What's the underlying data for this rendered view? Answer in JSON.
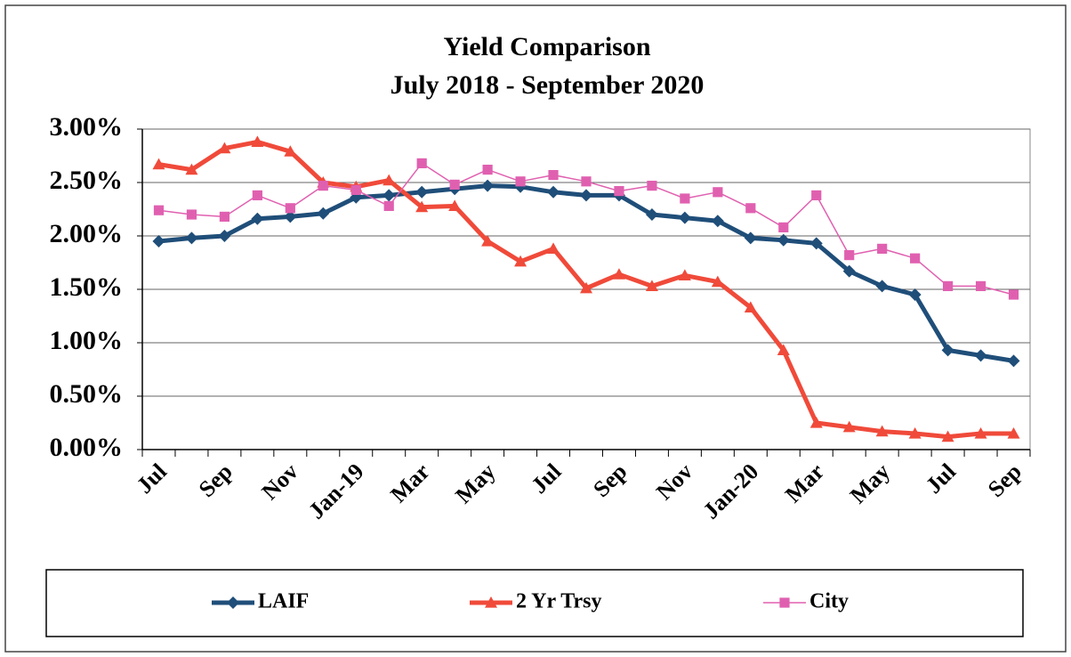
{
  "chart_data": {
    "type": "line",
    "title": "Yield Comparison",
    "subtitle": "July 2018 - September 2020",
    "categories": [
      "Jul",
      null,
      "Sep",
      null,
      "Nov",
      null,
      "Jan-19",
      null,
      "Mar",
      null,
      "May",
      null,
      "Jul",
      null,
      "Sep",
      null,
      "Nov",
      null,
      "Jan-20",
      null,
      "Mar",
      null,
      "May",
      null,
      "Jul",
      null,
      "Sep"
    ],
    "series": [
      {
        "name": "LAIF",
        "color": "#1f4e79",
        "marker": "diamond",
        "values": [
          1.95,
          1.98,
          2.0,
          2.16,
          2.18,
          2.21,
          2.36,
          2.38,
          2.41,
          2.44,
          2.47,
          2.46,
          2.41,
          2.38,
          2.38,
          2.2,
          2.17,
          2.14,
          1.98,
          1.96,
          1.93,
          1.67,
          1.53,
          1.45,
          0.93,
          0.88,
          0.83
        ]
      },
      {
        "name": "2 Yr Trsy",
        "color": "#f04a3a",
        "marker": "triangle",
        "values": [
          2.67,
          2.62,
          2.82,
          2.88,
          2.79,
          2.5,
          2.46,
          2.52,
          2.27,
          2.28,
          1.95,
          1.76,
          1.88,
          1.51,
          1.64,
          1.53,
          1.63,
          1.57,
          1.33,
          0.93,
          0.25,
          0.21,
          0.17,
          0.15,
          0.12,
          0.15,
          0.15
        ]
      },
      {
        "name": "City",
        "color": "#e060b0",
        "marker": "square",
        "values": [
          2.24,
          2.2,
          2.18,
          2.38,
          2.26,
          2.47,
          2.43,
          2.28,
          2.68,
          2.48,
          2.62,
          2.51,
          2.57,
          2.51,
          2.42,
          2.47,
          2.35,
          2.41,
          2.26,
          2.08,
          2.38,
          1.82,
          1.88,
          1.79,
          1.53,
          1.53,
          1.45
        ]
      }
    ],
    "ylim": [
      0,
      3
    ],
    "yticks": [
      {
        "value": 0,
        "label": "0.00%"
      },
      {
        "value": 0.5,
        "label": "0.50%"
      },
      {
        "value": 1,
        "label": "1.00%"
      },
      {
        "value": 1.5,
        "label": "1.50%"
      },
      {
        "value": 2,
        "label": "2.00%"
      },
      {
        "value": 2.5,
        "label": "2.50%"
      },
      {
        "value": 3,
        "label": "3.00%"
      }
    ],
    "grid": true,
    "legend": "bottom"
  }
}
